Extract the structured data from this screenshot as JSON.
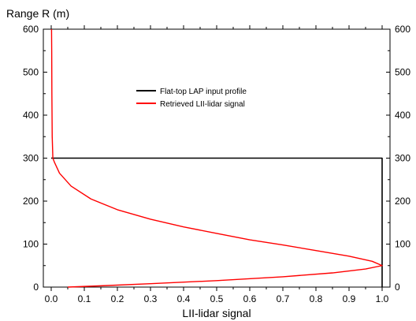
{
  "chart_data": {
    "type": "line",
    "title": "",
    "xlabel": "LII-lidar signal",
    "ylabel": "Range R (m)",
    "xlim": [
      0,
      1
    ],
    "ylim": [
      0,
      600
    ],
    "xticks": [
      "0.0",
      "0.1",
      "0.2",
      "0.3",
      "0.4",
      "0.5",
      "0.6",
      "0.7",
      "0.8",
      "0.9",
      "1.0"
    ],
    "yticks": [
      "0",
      "100",
      "200",
      "300",
      "400",
      "500",
      "600"
    ],
    "y_right_ticks": true,
    "grid": false,
    "legend_position": "upper-center",
    "series": [
      {
        "name": "Flat-top LAP input profile",
        "color": "#000000",
        "points": [
          [
            0.0,
            300
          ],
          [
            1.0,
            300
          ],
          [
            1.0,
            0
          ]
        ]
      },
      {
        "name": "Retrieved LII-lidar signal",
        "color": "#ff0000",
        "points": [
          [
            0.05,
            0
          ],
          [
            0.15,
            3
          ],
          [
            0.3,
            8
          ],
          [
            0.5,
            15
          ],
          [
            0.7,
            24
          ],
          [
            0.85,
            33
          ],
          [
            0.95,
            42
          ],
          [
            1.0,
            50
          ],
          [
            0.97,
            60
          ],
          [
            0.9,
            72
          ],
          [
            0.8,
            85
          ],
          [
            0.7,
            98
          ],
          [
            0.6,
            110
          ],
          [
            0.5,
            125
          ],
          [
            0.4,
            140
          ],
          [
            0.3,
            158
          ],
          [
            0.2,
            180
          ],
          [
            0.12,
            205
          ],
          [
            0.06,
            235
          ],
          [
            0.025,
            265
          ],
          [
            0.01,
            290
          ],
          [
            0.005,
            300
          ],
          [
            0.003,
            350
          ],
          [
            0.002,
            450
          ],
          [
            0.0015,
            550
          ],
          [
            0.001,
            600
          ]
        ]
      }
    ]
  }
}
